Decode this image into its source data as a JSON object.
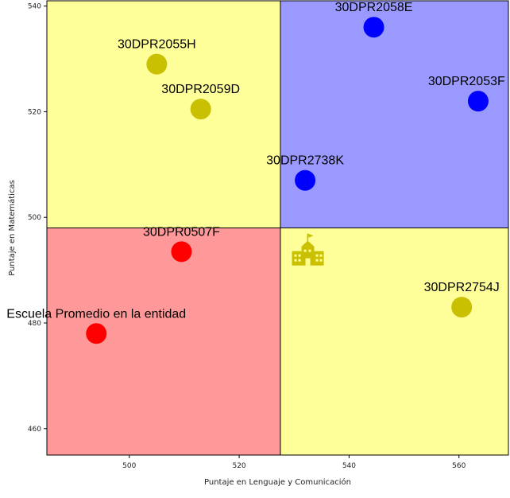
{
  "chart_data": {
    "type": "scatter",
    "title": "",
    "xlabel": "Puntaje en Lenguaje y Comunicación",
    "ylabel": "Puntaje en Matemáticas",
    "xlim": [
      485,
      569
    ],
    "ylim": [
      455,
      541
    ],
    "x_ticks": [
      500,
      520,
      540,
      560
    ],
    "y_ticks": [
      460,
      480,
      500,
      520,
      540
    ],
    "grid": false,
    "quadrant_split": {
      "x": 527.5,
      "y": 498
    },
    "quadrant_colors": {
      "top_left": "#ffff99",
      "top_right": "#9999ff",
      "bottom_left": "#ff9999",
      "bottom_right": "#ffff99"
    },
    "reference_icon": {
      "name": "school-icon",
      "x": 532.5,
      "y": 493,
      "color": "#c8c000"
    },
    "points": [
      {
        "label": "30DPR2055H",
        "x": 505,
        "y": 529,
        "color": "#c8c000"
      },
      {
        "label": "30DPR2059D",
        "x": 513,
        "y": 520.5,
        "color": "#c8c000"
      },
      {
        "label": "30DPR2058E",
        "x": 544.5,
        "y": 536,
        "color": "#0000ff"
      },
      {
        "label": "30DPR2053F",
        "x": 563.5,
        "y": 522,
        "color": "#0000ff"
      },
      {
        "label": "30DPR2738K",
        "x": 532,
        "y": 507,
        "color": "#0000ff"
      },
      {
        "label": "30DPR0507F",
        "x": 509.5,
        "y": 493.5,
        "color": "#ff0000"
      },
      {
        "label": "30DPR2754J",
        "x": 560.5,
        "y": 483,
        "color": "#c8c000"
      },
      {
        "label": "Escuela Promedio en la entidad",
        "x": 494,
        "y": 478,
        "color": "#ff0000"
      }
    ]
  }
}
